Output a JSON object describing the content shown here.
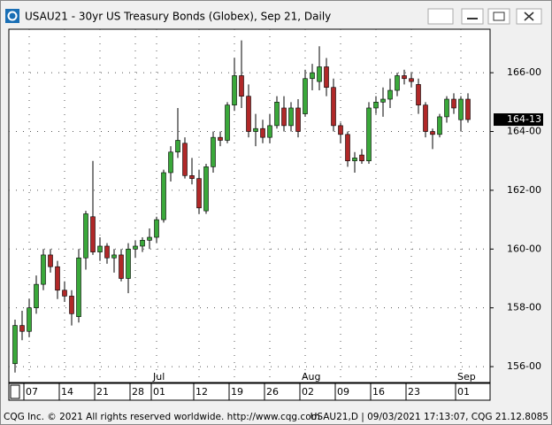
{
  "chart_data": {
    "type": "candlestick",
    "title": "USAU21 - 30yr US Treasury Bonds (Globex), Sep 21, Daily",
    "categories": [
      null,
      null,
      "07",
      null,
      null,
      null,
      null,
      "14",
      null,
      null,
      null,
      null,
      "21",
      null,
      null,
      null,
      null,
      "28",
      null,
      null,
      "01",
      null,
      null,
      null,
      null,
      null,
      "12",
      null,
      null,
      null,
      null,
      "19",
      null,
      null,
      null,
      null,
      "26",
      null,
      null,
      null,
      null,
      "02",
      null,
      null,
      null,
      null,
      "09",
      null,
      null,
      null,
      null,
      "16",
      null,
      null,
      null,
      null,
      "23",
      null,
      null,
      null,
      null,
      null,
      null,
      "01",
      null
    ],
    "month_categories": [
      null,
      null,
      null,
      null,
      null,
      null,
      null,
      null,
      null,
      null,
      null,
      null,
      null,
      null,
      null,
      null,
      null,
      null,
      null,
      null,
      "Jul",
      null,
      null,
      null,
      null,
      null,
      null,
      null,
      null,
      null,
      null,
      null,
      null,
      null,
      null,
      null,
      null,
      null,
      null,
      null,
      null,
      "Aug",
      null,
      null,
      null,
      null,
      null,
      null,
      null,
      null,
      null,
      null,
      null,
      null,
      null,
      null,
      null,
      null,
      null,
      null,
      null,
      null,
      null,
      "Sep",
      null
    ],
    "open": [
      156.1,
      157.4,
      157.2,
      158.0,
      158.8,
      159.8,
      159.4,
      158.6,
      158.4,
      157.7,
      159.7,
      161.1,
      159.9,
      160.1,
      159.7,
      159.8,
      159.0,
      160.0,
      160.1,
      160.3,
      160.4,
      161.0,
      162.6,
      163.3,
      163.6,
      162.5,
      162.4,
      161.3,
      162.8,
      163.8,
      163.7,
      164.9,
      165.9,
      165.2,
      164.0,
      164.1,
      163.8,
      164.2,
      164.8,
      164.2,
      164.8,
      164.6,
      165.8,
      165.7,
      166.2,
      165.5,
      164.2,
      163.9,
      163.0,
      163.2,
      163.0,
      164.8,
      165.0,
      165.1,
      165.4,
      165.9,
      165.8,
      165.6,
      164.9,
      164.0,
      163.9,
      164.5,
      165.1,
      164.4,
      165.1
    ],
    "high": [
      157.6,
      157.9,
      158.3,
      159.1,
      160.0,
      160.0,
      159.6,
      158.9,
      158.6,
      160.0,
      161.3,
      163.0,
      160.4,
      160.2,
      160.0,
      160.0,
      160.2,
      160.3,
      160.4,
      160.7,
      161.1,
      162.7,
      163.5,
      164.8,
      163.8,
      163.1,
      162.7,
      162.9,
      164.0,
      164.0,
      165.0,
      166.5,
      167.1,
      165.6,
      164.6,
      164.4,
      164.6,
      165.2,
      165.2,
      165.0,
      165.1,
      166.1,
      166.3,
      166.9,
      166.5,
      165.8,
      164.3,
      164.0,
      163.3,
      163.4,
      165.0,
      165.2,
      165.5,
      165.8,
      166.0,
      166.1,
      166.0,
      165.8,
      165.0,
      164.1,
      164.6,
      165.2,
      165.3,
      165.2,
      165.3
    ],
    "low": [
      155.8,
      156.9,
      157.0,
      157.8,
      158.6,
      159.2,
      158.3,
      158.2,
      157.4,
      157.5,
      159.3,
      159.8,
      159.6,
      159.5,
      159.2,
      158.9,
      158.5,
      159.7,
      159.9,
      160.0,
      160.2,
      160.9,
      162.3,
      163.1,
      162.4,
      162.2,
      161.2,
      161.2,
      162.6,
      163.5,
      163.6,
      164.7,
      164.8,
      163.8,
      163.5,
      163.6,
      163.6,
      164.1,
      164.0,
      164.0,
      163.8,
      164.5,
      165.4,
      165.4,
      165.2,
      164.0,
      163.6,
      162.8,
      162.6,
      162.9,
      162.9,
      164.6,
      164.5,
      164.8,
      165.2,
      165.6,
      165.5,
      164.6,
      163.8,
      163.4,
      163.8,
      164.3,
      164.6,
      164.0,
      164.3
    ],
    "close": [
      157.4,
      157.2,
      158.0,
      158.8,
      159.8,
      159.4,
      158.6,
      158.4,
      157.8,
      159.7,
      161.2,
      159.9,
      160.1,
      159.7,
      159.8,
      159.0,
      160.0,
      160.1,
      160.3,
      160.4,
      161.0,
      162.6,
      163.3,
      163.7,
      162.5,
      162.4,
      161.4,
      162.8,
      163.8,
      163.7,
      164.9,
      165.9,
      165.2,
      164.0,
      164.1,
      163.8,
      164.2,
      165.0,
      164.2,
      164.8,
      164.0,
      165.8,
      166.0,
      166.2,
      165.5,
      164.2,
      163.9,
      163.0,
      163.1,
      163.0,
      164.8,
      165.0,
      165.1,
      165.4,
      165.9,
      165.8,
      165.7,
      164.9,
      164.0,
      163.9,
      164.5,
      165.1,
      164.8,
      165.1,
      164.40625
    ],
    "up_color": "#3aa83a",
    "down_color": "#b02828",
    "last_price": {
      "value": 164.40625,
      "label": "164-13"
    },
    "ylim": [
      155.46,
      167.48
    ],
    "yticks": [
      {
        "value": 156,
        "label": "156-00"
      },
      {
        "value": 158,
        "label": "158-00"
      },
      {
        "value": 160,
        "label": "160-00"
      },
      {
        "value": 162,
        "label": "162-00"
      },
      {
        "value": 164,
        "label": "164-00"
      },
      {
        "value": 166,
        "label": "166-00"
      }
    ],
    "grid": true
  },
  "footer": {
    "left": "CQG Inc. © 2021 All rights reserved worldwide. http://www.cqg.com",
    "right": "USAU21,D | 09/03/2021 17:13:07, CQG 21.12.8085"
  }
}
